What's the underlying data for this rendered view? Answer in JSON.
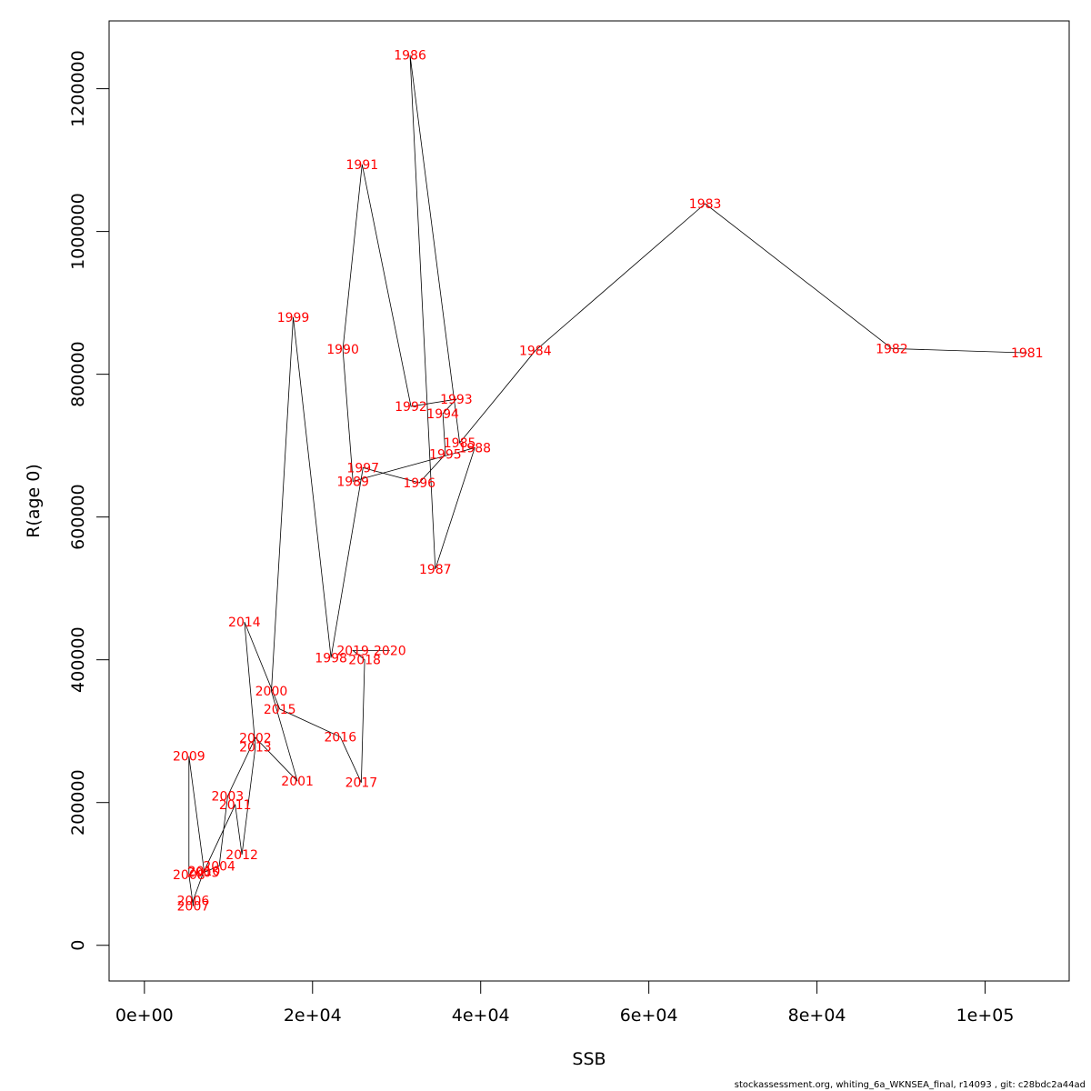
{
  "chart_data": {
    "type": "line",
    "xlabel": "SSB",
    "ylabel": "R(age 0)",
    "xlim": [
      -4200,
      110000
    ],
    "ylim": [
      -50000,
      1295000
    ],
    "x_ticks": [
      0,
      20000,
      40000,
      60000,
      80000,
      100000
    ],
    "x_tick_labels": [
      "0e+00",
      "2e+04",
      "4e+04",
      "6e+04",
      "8e+04",
      "1e+05"
    ],
    "y_ticks": [
      0,
      200000,
      400000,
      600000,
      800000,
      1000000,
      1200000
    ],
    "y_tick_labels": [
      "0",
      "200000",
      "400000",
      "600000",
      "800000",
      "1000000",
      "1200000"
    ],
    "grid": false,
    "line_color": "#000000",
    "label_color": "#ff0000",
    "points": [
      {
        "year": "1981",
        "x": 105000,
        "y": 830000
      },
      {
        "year": "1982",
        "x": 88900,
        "y": 836000
      },
      {
        "year": "1983",
        "x": 66700,
        "y": 1039000
      },
      {
        "year": "1984",
        "x": 46500,
        "y": 833000
      },
      {
        "year": "1985",
        "x": 37500,
        "y": 704000
      },
      {
        "year": "1986",
        "x": 31600,
        "y": 1247000
      },
      {
        "year": "1987",
        "x": 34600,
        "y": 527000
      },
      {
        "year": "1988",
        "x": 39300,
        "y": 697000
      },
      {
        "year": "1989",
        "x": 24800,
        "y": 650000
      },
      {
        "year": "1990",
        "x": 23600,
        "y": 835000
      },
      {
        "year": "1991",
        "x": 25900,
        "y": 1094000
      },
      {
        "year": "1992",
        "x": 31700,
        "y": 755000
      },
      {
        "year": "1993",
        "x": 37100,
        "y": 765000
      },
      {
        "year": "1994",
        "x": 35500,
        "y": 745000
      },
      {
        "year": "1995",
        "x": 35800,
        "y": 688000
      },
      {
        "year": "1996",
        "x": 32700,
        "y": 648000
      },
      {
        "year": "1997",
        "x": 26000,
        "y": 669000
      },
      {
        "year": "1998",
        "x": 22200,
        "y": 403000
      },
      {
        "year": "1999",
        "x": 17700,
        "y": 880000
      },
      {
        "year": "2000",
        "x": 15100,
        "y": 356000
      },
      {
        "year": "2001",
        "x": 18200,
        "y": 230000
      },
      {
        "year": "2002",
        "x": 13200,
        "y": 291000
      },
      {
        "year": "2003",
        "x": 9900,
        "y": 209000
      },
      {
        "year": "2004",
        "x": 8900,
        "y": 111000
      },
      {
        "year": "2005",
        "x": 7000,
        "y": 102000
      },
      {
        "year": "2006",
        "x": 5800,
        "y": 63000
      },
      {
        "year": "2007",
        "x": 5800,
        "y": 55000
      },
      {
        "year": "2008",
        "x": 5300,
        "y": 99000
      },
      {
        "year": "2009",
        "x": 5300,
        "y": 265000
      },
      {
        "year": "2010",
        "x": 7100,
        "y": 104000
      },
      {
        "year": "2011",
        "x": 10800,
        "y": 197000
      },
      {
        "year": "2012",
        "x": 11600,
        "y": 127000
      },
      {
        "year": "2013",
        "x": 13200,
        "y": 278000
      },
      {
        "year": "2014",
        "x": 11900,
        "y": 453000
      },
      {
        "year": "2015",
        "x": 16100,
        "y": 331000
      },
      {
        "year": "2016",
        "x": 23300,
        "y": 292000
      },
      {
        "year": "2017",
        "x": 25800,
        "y": 228000
      },
      {
        "year": "2018",
        "x": 26200,
        "y": 400000
      },
      {
        "year": "2019",
        "x": 24800,
        "y": 413000
      },
      {
        "year": "2020",
        "x": 29200,
        "y": 413000
      }
    ]
  },
  "footer": "stockassessment.org, whiting_6a_WKNSEA_final, r14093 , git: c28bdc2a44ad"
}
